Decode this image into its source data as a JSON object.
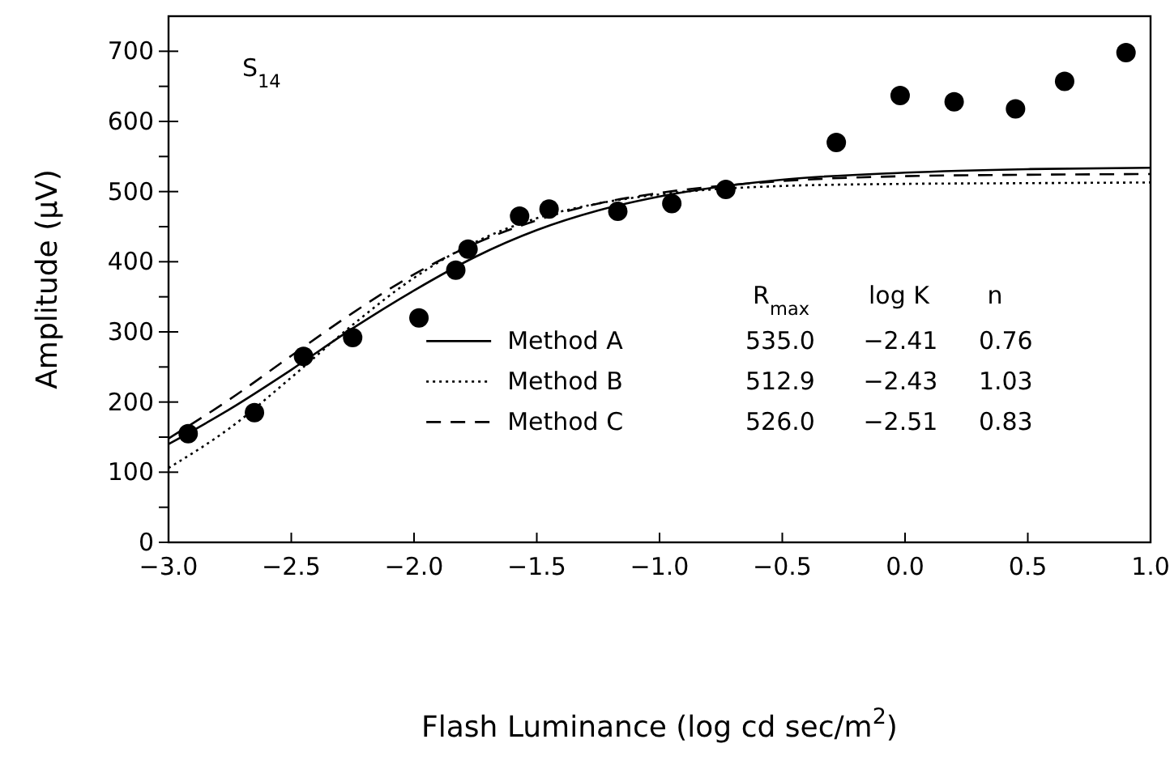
{
  "chart_data": {
    "type": "scatter",
    "xlabel": "Flash Luminance (log cd sec/m$^{2}$)",
    "ylabel": "Amplitude (μV)",
    "xlim": [
      -3,
      1
    ],
    "ylim": [
      0,
      750
    ],
    "xticks": [
      {
        "value": -3,
        "label": "−3.0"
      },
      {
        "value": -2.5,
        "label": "−2.5"
      },
      {
        "value": -2,
        "label": "−2.0"
      },
      {
        "value": -1.5,
        "label": "−1.5"
      },
      {
        "value": -1,
        "label": "−1.0"
      },
      {
        "value": -0.5,
        "label": "−0.5"
      },
      {
        "value": 0,
        "label": "0.0"
      },
      {
        "value": 0.5,
        "label": "0.5"
      },
      {
        "value": 1,
        "label": "1.0"
      }
    ],
    "yticks": [
      0,
      {
        "value": 50,
        "label": null
      },
      100,
      {
        "value": 150,
        "label": null
      },
      200,
      {
        "value": 250,
        "label": null
      },
      300,
      {
        "value": 350,
        "label": null
      },
      400,
      {
        "value": 450,
        "label": null
      },
      500,
      {
        "value": 550,
        "label": null
      },
      600,
      {
        "value": 650,
        "label": null
      },
      700
    ],
    "grid": false,
    "legend": "bottom",
    "annotations": [
      "S$_{14}$",
      "R$_{max}$",
      "log K",
      "n",
      "535.0",
      "−2.41",
      "0.76",
      "512.9",
      "−2.43",
      "1.03",
      "526.0",
      "−2.51",
      "0.83"
    ],
    "series": [
      {
        "color": "#000000",
        "marker": "circle",
        "x": [
          -2.92,
          -2.65,
          -2.45,
          -2.25,
          -1.98,
          -1.83,
          -1.78,
          -1.57,
          -1.45,
          -1.17,
          -0.95,
          -0.73,
          -0.28,
          -0.02,
          0.2,
          0.45,
          0.65,
          0.9
        ],
        "values": [
          155,
          185,
          265,
          292,
          320,
          388,
          418,
          465,
          475,
          472,
          483,
          503,
          570,
          637,
          628,
          618,
          657,
          698
        ]
      },
      {
        "type": "line",
        "name": "Method A",
        "color": "#000000",
        "line_style": "solid",
        "x": [
          -3,
          -2.75,
          -2.5,
          -2.25,
          -2,
          -1.75,
          -1.5,
          -1.25,
          -1,
          -0.5,
          0,
          0.5,
          1
        ],
        "values": [
          140,
          190,
          246,
          305,
          359,
          407,
          445,
          473,
          493,
          517,
          527,
          532,
          534
        ]
      },
      {
        "type": "line",
        "name": "Method B",
        "color": "#000000",
        "line_style": "dotted",
        "x": [
          -3,
          -2.75,
          -2.5,
          -2.25,
          -2,
          -1.75,
          -1.5,
          -1.25,
          -1,
          -0.5,
          0,
          0.5,
          1
        ],
        "values": [
          106,
          163,
          235,
          310,
          377,
          428,
          462,
          483,
          496,
          508,
          511,
          512,
          513
        ]
      },
      {
        "type": "line",
        "name": "Method C",
        "color": "#000000",
        "line_style": "dashed",
        "x": [
          -3,
          -2.75,
          -2.5,
          -2.25,
          -2,
          -1.75,
          -1.5,
          -1.25,
          -1,
          -0.5,
          0,
          0.5,
          1
        ],
        "values": [
          148,
          204,
          266,
          327,
          382,
          426,
          459,
          483,
          498,
          515,
          522,
          524,
          525
        ]
      }
    ]
  }
}
